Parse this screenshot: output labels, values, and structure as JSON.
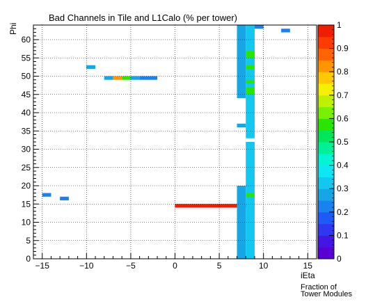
{
  "chart_data": {
    "type": "heatmap",
    "title": "Bad Channels in Tile and L1Calo (% per tower)",
    "xlabel": "iEta",
    "ylabel": "Phi",
    "zlabel_line1": "Fraction of",
    "zlabel_line2": "Tower Modules",
    "xlim": [
      -16,
      16
    ],
    "ylim": [
      0,
      64
    ],
    "zlim": [
      0,
      1
    ],
    "x_ticks": [
      -15,
      -10,
      -5,
      0,
      5,
      10,
      15
    ],
    "y_ticks": [
      0,
      5,
      10,
      15,
      20,
      25,
      30,
      35,
      40,
      45,
      50,
      55,
      60
    ],
    "z_ticks": [
      "0",
      "0.1",
      "0.2",
      "0.3",
      "0.4",
      "0.5",
      "0.6",
      "0.7",
      "0.8",
      "0.9",
      "1"
    ],
    "grid": true,
    "colorbar": "right",
    "palette": [
      "#5A00D6",
      "#4416E6",
      "#2F37F0",
      "#1E5AF5",
      "#1982F0",
      "#16A6E6",
      "#12C8F0",
      "#0FE6F5",
      "#00F5D2",
      "#00F097",
      "#00E65A",
      "#28E600",
      "#78F000",
      "#BEF000",
      "#F5F000",
      "#FFC800",
      "#FF9600",
      "#FF6400",
      "#FF3C00",
      "#F01E00"
    ],
    "cells": [
      {
        "x": -15,
        "y": 17,
        "w": 1,
        "h": 1,
        "v": 0.2
      },
      {
        "x": -13,
        "y": 16,
        "w": 1,
        "h": 1,
        "v": 0.24
      },
      {
        "x": -10,
        "y": 52,
        "w": 1,
        "h": 1,
        "v": 0.27
      },
      {
        "x": -8,
        "y": 49,
        "w": 1,
        "h": 1,
        "v": 0.27
      },
      {
        "x": -7,
        "y": 49,
        "w": 1,
        "h": 1,
        "v": 0.8
      },
      {
        "x": -6,
        "y": 49,
        "w": 1,
        "h": 1,
        "v": 0.55
      },
      {
        "x": -5,
        "y": 49,
        "w": 1,
        "h": 1,
        "v": 0.27
      },
      {
        "x": -4,
        "y": 49,
        "w": 2,
        "h": 1,
        "v": 0.22
      },
      {
        "x": 0,
        "y": 14,
        "w": 9,
        "h": 1,
        "v": 0.97
      },
      {
        "x": 7,
        "y": 0,
        "w": 1,
        "h": 20,
        "v": 0.25
      },
      {
        "x": 7,
        "y": 44,
        "w": 1,
        "h": 20,
        "v": 0.25
      },
      {
        "x": 7,
        "y": 36,
        "w": 1,
        "h": 1,
        "v": 0.25
      },
      {
        "x": 8,
        "y": 0,
        "w": 1,
        "h": 32,
        "v": 0.33
      },
      {
        "x": 8,
        "y": 33,
        "w": 1,
        "h": 31,
        "v": 0.33
      },
      {
        "x": 8,
        "y": 17,
        "w": 1,
        "h": 1,
        "v": 0.55
      },
      {
        "x": 8,
        "y": 45,
        "w": 1,
        "h": 2,
        "v": 0.55
      },
      {
        "x": 8,
        "y": 48,
        "w": 1,
        "h": 1,
        "v": 0.55
      },
      {
        "x": 8,
        "y": 52,
        "w": 1,
        "h": 1,
        "v": 0.55
      },
      {
        "x": 8,
        "y": 55,
        "w": 1,
        "h": 2,
        "v": 0.55
      },
      {
        "x": 9,
        "y": 63,
        "w": 1,
        "h": 1,
        "v": 0.2
      },
      {
        "x": 12,
        "y": 62,
        "w": 1,
        "h": 1,
        "v": 0.24
      }
    ]
  }
}
